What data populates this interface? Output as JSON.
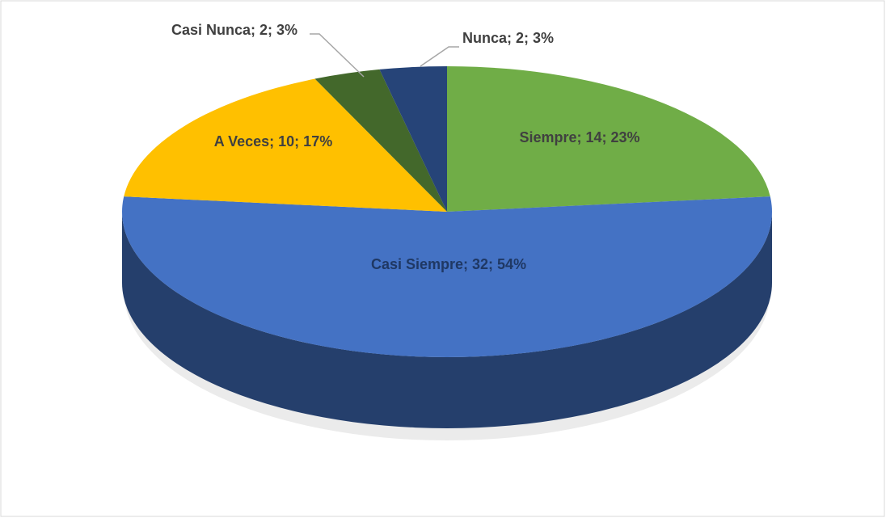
{
  "chart_data": {
    "type": "pie",
    "values": [
      14,
      32,
      10,
      2,
      2
    ],
    "value_labels": [
      "Siempre; 14; 23%",
      "Casi Siempre; 32; 54%",
      "A Veces; 10; 17%",
      "Casi Nunca; 2; 3%",
      "Nunca; 2; 3%"
    ],
    "colors": [
      "#70ad47",
      "#4472c4",
      "#ffc000",
      "#43682b",
      "#264478"
    ]
  }
}
